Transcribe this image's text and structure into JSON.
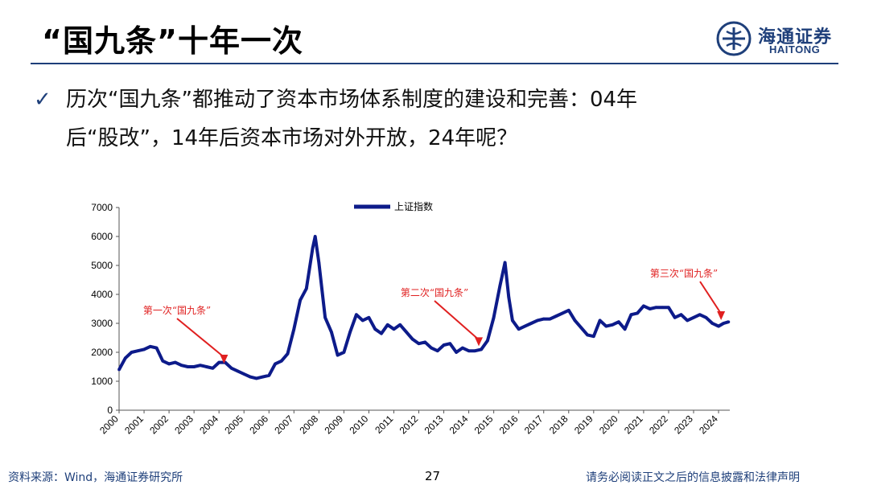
{
  "slide": {
    "title": "“国九条”十年一次",
    "bullet_line1": "历次“国九条”都推动了资本市场体系制度的建设和完善：04年",
    "bullet_line2": "后“股改”，14年后资本市场对外开放，24年呢？"
  },
  "logo": {
    "cn": "海通证券",
    "en": "HAITONG",
    "icon": "haitong-logo-icon"
  },
  "footer": {
    "source": "资料来源：Wind，海通证券研究所",
    "page": "27",
    "disclaimer": "请务必阅读正文之后的信息披露和法律声明"
  },
  "colors": {
    "series": "#0d1b8a",
    "annotation": "#e02020",
    "rule": "#1e3f7a"
  },
  "chart_data": {
    "type": "line",
    "series": [
      {
        "name": "上证指数",
        "x": [
          2000.0,
          2000.25,
          2000.5,
          2000.75,
          2001.0,
          2001.25,
          2001.5,
          2001.75,
          2002.0,
          2002.25,
          2002.5,
          2002.75,
          2003.0,
          2003.25,
          2003.5,
          2003.75,
          2004.0,
          2004.25,
          2004.5,
          2004.75,
          2005.0,
          2005.25,
          2005.5,
          2005.75,
          2006.0,
          2006.25,
          2006.5,
          2006.75,
          2007.0,
          2007.25,
          2007.5,
          2007.75,
          2007.85,
          2008.0,
          2008.25,
          2008.5,
          2008.75,
          2009.0,
          2009.25,
          2009.5,
          2009.75,
          2010.0,
          2010.25,
          2010.5,
          2010.75,
          2011.0,
          2011.25,
          2011.5,
          2011.75,
          2012.0,
          2012.25,
          2012.5,
          2012.75,
          2013.0,
          2013.25,
          2013.5,
          2013.75,
          2014.0,
          2014.25,
          2014.5,
          2014.75,
          2015.0,
          2015.25,
          2015.45,
          2015.6,
          2015.75,
          2016.0,
          2016.25,
          2016.5,
          2016.75,
          2017.0,
          2017.25,
          2017.5,
          2017.75,
          2018.0,
          2018.25,
          2018.5,
          2018.75,
          2019.0,
          2019.25,
          2019.5,
          2019.75,
          2020.0,
          2020.25,
          2020.5,
          2020.75,
          2021.0,
          2021.25,
          2021.5,
          2021.75,
          2022.0,
          2022.25,
          2022.5,
          2022.75,
          2023.0,
          2023.25,
          2023.5,
          2023.75,
          2024.0,
          2024.2,
          2024.4
        ],
        "values": [
          1400,
          1800,
          2000,
          2050,
          2100,
          2200,
          2150,
          1700,
          1600,
          1650,
          1550,
          1500,
          1500,
          1550,
          1500,
          1450,
          1650,
          1650,
          1450,
          1350,
          1250,
          1150,
          1100,
          1150,
          1200,
          1600,
          1700,
          1950,
          2800,
          3800,
          4200,
          5600,
          6000,
          5100,
          3200,
          2700,
          1900,
          2000,
          2700,
          3300,
          3100,
          3200,
          2800,
          2650,
          2950,
          2800,
          2950,
          2700,
          2450,
          2300,
          2350,
          2150,
          2050,
          2250,
          2300,
          2000,
          2150,
          2050,
          2050,
          2100,
          2400,
          3200,
          4300,
          5100,
          3900,
          3100,
          2800,
          2900,
          3000,
          3100,
          3150,
          3150,
          3250,
          3350,
          3450,
          3100,
          2850,
          2600,
          2550,
          3100,
          2900,
          2950,
          3050,
          2800,
          3300,
          3350,
          3600,
          3500,
          3550,
          3550,
          3550,
          3200,
          3300,
          3100,
          3200,
          3300,
          3200,
          3000,
          2900,
          3000,
          3050
        ]
      }
    ],
    "ylim": [
      0,
      7000
    ],
    "yticks": [
      "0",
      "1000",
      "2000",
      "3000",
      "4000",
      "5000",
      "6000",
      "7000"
    ],
    "xticks": [
      "2000",
      "2001",
      "2002",
      "2003",
      "2004",
      "2005",
      "2006",
      "2007",
      "2008",
      "2009",
      "2010",
      "2011",
      "2012",
      "2013",
      "2014",
      "2015",
      "2016",
      "2017",
      "2018",
      "2019",
      "2020",
      "2021",
      "2022",
      "2023",
      "2024"
    ],
    "legend": "top-center",
    "grid": false,
    "annotations": [
      {
        "text": "第一次“国九条”",
        "x": 2004.2,
        "y": 1500
      },
      {
        "text": "第二次“国九条”",
        "x": 2014.4,
        "y": 2100
      },
      {
        "text": "第三次“国九条”",
        "x": 2024.1,
        "y": 3000
      }
    ]
  }
}
